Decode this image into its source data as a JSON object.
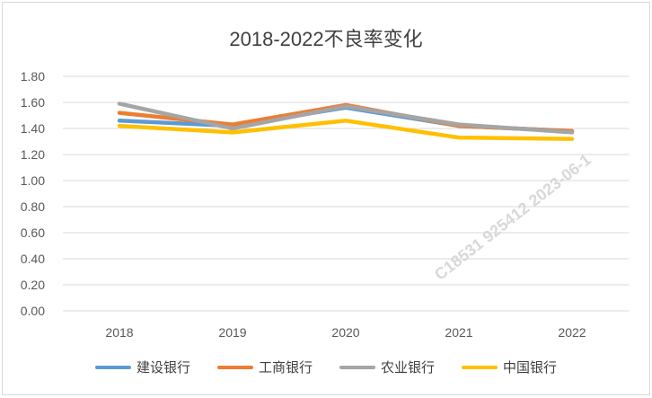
{
  "chart_data": {
    "type": "line",
    "title": "2018-2022不良率变化",
    "categories": [
      "2018",
      "2019",
      "2020",
      "2021",
      "2022"
    ],
    "ylim": [
      0,
      1.8
    ],
    "yticks": [
      "0.00",
      "0.20",
      "0.40",
      "0.60",
      "0.80",
      "1.00",
      "1.20",
      "1.40",
      "1.60",
      "1.80"
    ],
    "grid": true,
    "legend": "bottom",
    "series": [
      {
        "name": "建设银行",
        "color": "#5b9bd5",
        "values": [
          1.46,
          1.42,
          1.56,
          1.42,
          1.38
        ]
      },
      {
        "name": "工商银行",
        "color": "#ed7d31",
        "values": [
          1.52,
          1.43,
          1.58,
          1.42,
          1.38
        ]
      },
      {
        "name": "农业银行",
        "color": "#a5a5a5",
        "values": [
          1.59,
          1.4,
          1.57,
          1.43,
          1.37
        ]
      },
      {
        "name": "中国银行",
        "color": "#ffc000",
        "values": [
          1.42,
          1.37,
          1.46,
          1.33,
          1.32
        ]
      }
    ]
  },
  "watermark": "C18531  925412  2023-06-1"
}
